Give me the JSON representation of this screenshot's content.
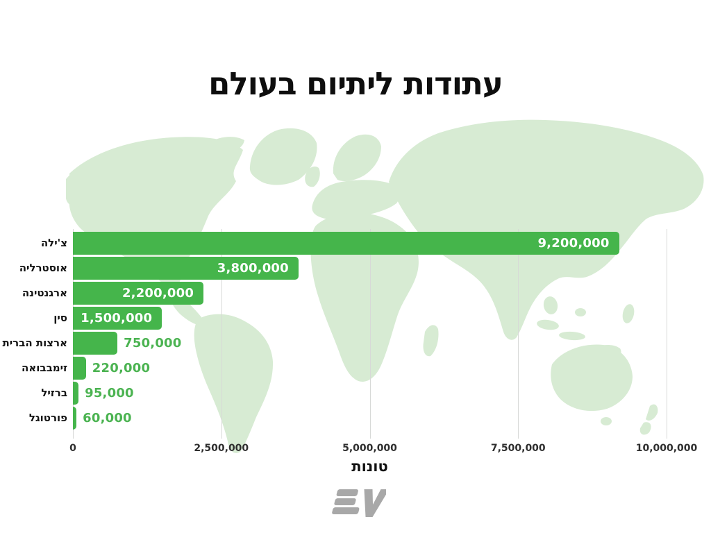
{
  "page": {
    "background_color": "#ffffff",
    "map_background_color": "#d7ebd3"
  },
  "chart_data": {
    "type": "bar",
    "orientation": "horizontal",
    "title": "עתודות ליתיום בעולם",
    "xlabel": "טונות",
    "categories": [
      "צ'ילה",
      "אוסטרליה",
      "ארגנטינה",
      "סין",
      "ארצות הברית",
      "זימבבואה",
      "ברזיל",
      "פורטוגל"
    ],
    "values": [
      9200000,
      3800000,
      2200000,
      1500000,
      750000,
      220000,
      95000,
      60000
    ],
    "value_labels": [
      "9,200,000",
      "3,800,000",
      "2,200,000",
      "1,500,000",
      "750,000",
      "220,000",
      "95,000",
      "60,000"
    ],
    "xlim": [
      0,
      10000000
    ],
    "x_tick_values": [
      0,
      2500000,
      5000000,
      7500000,
      10000000
    ],
    "x_tick_labels": [
      "0",
      "2,500,000",
      "5,000,000",
      "7,500,000",
      "10,000,000"
    ],
    "grid": true,
    "gridline_color": "#d7d9d7",
    "legend": "none",
    "bar_color": "#45b54b",
    "value_label_inside_color": "#ffffff",
    "value_label_outside_color": "#4bb351"
  },
  "footer": {
    "logo_name": "EV",
    "logo_color": "#a8a8a8"
  }
}
